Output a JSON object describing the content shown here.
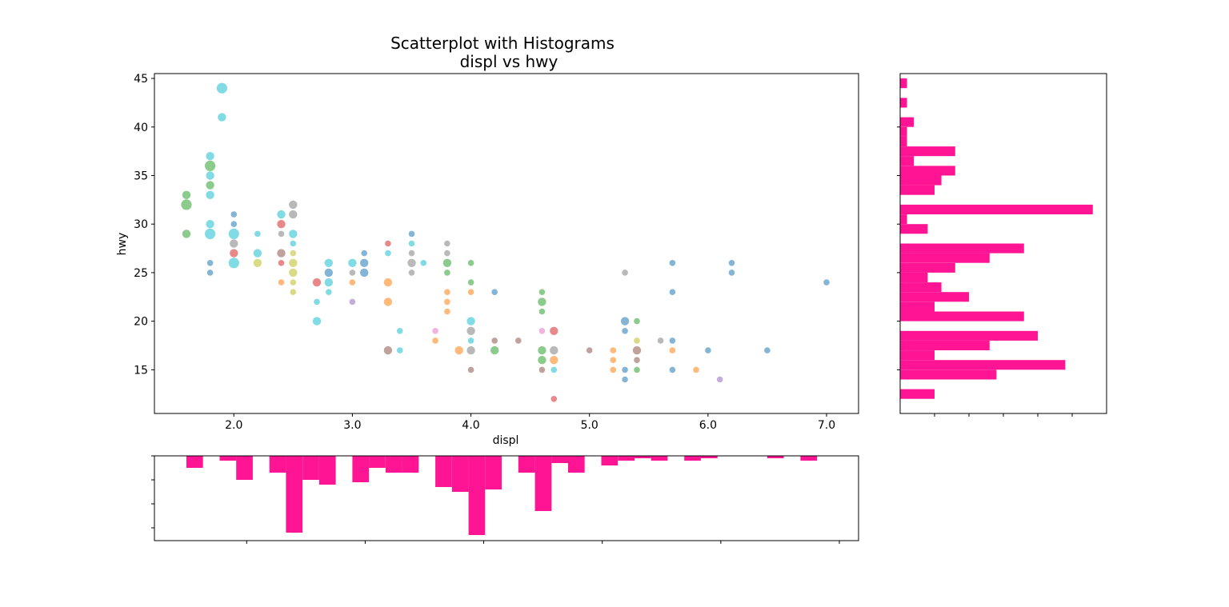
{
  "chart_data": {
    "type": "scatter",
    "title_line1": "Scatterplot with Histograms",
    "title_line2": "displ vs hwy",
    "xlabel": "displ",
    "ylabel": "hwy",
    "xlim": [
      1.33,
      7.27
    ],
    "ylim": [
      10.5,
      45.5
    ],
    "x_ticks": [
      2.0,
      3.0,
      4.0,
      5.0,
      6.0,
      7.0
    ],
    "x_tick_labels": [
      "2.0",
      "3.0",
      "4.0",
      "5.0",
      "6.0",
      "7.0"
    ],
    "y_ticks": [
      15,
      20,
      25,
      30,
      35,
      40,
      45
    ],
    "y_tick_labels": [
      "15",
      "20",
      "25",
      "30",
      "35",
      "40",
      "45"
    ],
    "hist_color": "#ff1493",
    "series_colors": [
      "#1f77b4",
      "#ff7f0e",
      "#2ca02c",
      "#d62728",
      "#9467bd",
      "#8c564b",
      "#e377c2",
      "#7f7f7f",
      "#bcbd22",
      "#17becf"
    ],
    "points": [
      {
        "x": 1.6,
        "y": 33,
        "c": 2,
        "n": 2
      },
      {
        "x": 1.6,
        "y": 32,
        "c": 2,
        "n": 3
      },
      {
        "x": 1.6,
        "y": 29,
        "c": 2,
        "n": 2
      },
      {
        "x": 1.8,
        "y": 37,
        "c": 9,
        "n": 2
      },
      {
        "x": 1.8,
        "y": 36,
        "c": 2,
        "n": 3
      },
      {
        "x": 1.8,
        "y": 35,
        "c": 9,
        "n": 2
      },
      {
        "x": 1.8,
        "y": 34,
        "c": 2,
        "n": 2
      },
      {
        "x": 1.8,
        "y": 33,
        "c": 9,
        "n": 2
      },
      {
        "x": 1.8,
        "y": 30,
        "c": 9,
        "n": 2
      },
      {
        "x": 1.8,
        "y": 29,
        "c": 9,
        "n": 3
      },
      {
        "x": 1.8,
        "y": 26,
        "c": 0,
        "n": 1
      },
      {
        "x": 1.8,
        "y": 25,
        "c": 0,
        "n": 1
      },
      {
        "x": 1.9,
        "y": 44,
        "c": 9,
        "n": 3
      },
      {
        "x": 1.9,
        "y": 41,
        "c": 9,
        "n": 2
      },
      {
        "x": 2.0,
        "y": 31,
        "c": 0,
        "n": 1
      },
      {
        "x": 2.0,
        "y": 30,
        "c": 0,
        "n": 1
      },
      {
        "x": 2.0,
        "y": 29,
        "c": 9,
        "n": 3
      },
      {
        "x": 2.0,
        "y": 28,
        "c": 7,
        "n": 2
      },
      {
        "x": 2.0,
        "y": 27,
        "c": 3,
        "n": 2
      },
      {
        "x": 2.0,
        "y": 26,
        "c": 9,
        "n": 3
      },
      {
        "x": 2.2,
        "y": 29,
        "c": 9,
        "n": 1
      },
      {
        "x": 2.2,
        "y": 27,
        "c": 9,
        "n": 2
      },
      {
        "x": 2.2,
        "y": 26,
        "c": 8,
        "n": 2
      },
      {
        "x": 2.4,
        "y": 31,
        "c": 9,
        "n": 2
      },
      {
        "x": 2.4,
        "y": 30,
        "c": 3,
        "n": 2
      },
      {
        "x": 2.4,
        "y": 29,
        "c": 7,
        "n": 1
      },
      {
        "x": 2.4,
        "y": 27,
        "c": 5,
        "n": 2
      },
      {
        "x": 2.4,
        "y": 26,
        "c": 3,
        "n": 1
      },
      {
        "x": 2.4,
        "y": 24,
        "c": 1,
        "n": 1
      },
      {
        "x": 2.5,
        "y": 32,
        "c": 7,
        "n": 2
      },
      {
        "x": 2.5,
        "y": 31,
        "c": 7,
        "n": 2
      },
      {
        "x": 2.5,
        "y": 29,
        "c": 9,
        "n": 2
      },
      {
        "x": 2.5,
        "y": 28,
        "c": 9,
        "n": 1
      },
      {
        "x": 2.5,
        "y": 27,
        "c": 8,
        "n": 1
      },
      {
        "x": 2.5,
        "y": 26,
        "c": 8,
        "n": 2
      },
      {
        "x": 2.5,
        "y": 25,
        "c": 8,
        "n": 2
      },
      {
        "x": 2.5,
        "y": 24,
        "c": 8,
        "n": 1
      },
      {
        "x": 2.5,
        "y": 23,
        "c": 8,
        "n": 1
      },
      {
        "x": 2.7,
        "y": 24,
        "c": 3,
        "n": 2
      },
      {
        "x": 2.7,
        "y": 22,
        "c": 9,
        "n": 1
      },
      {
        "x": 2.7,
        "y": 20,
        "c": 9,
        "n": 2
      },
      {
        "x": 2.8,
        "y": 26,
        "c": 9,
        "n": 2
      },
      {
        "x": 2.8,
        "y": 25,
        "c": 0,
        "n": 2
      },
      {
        "x": 2.8,
        "y": 24,
        "c": 9,
        "n": 2
      },
      {
        "x": 2.8,
        "y": 23,
        "c": 9,
        "n": 1
      },
      {
        "x": 3.0,
        "y": 26,
        "c": 9,
        "n": 2
      },
      {
        "x": 3.0,
        "y": 25,
        "c": 7,
        "n": 1
      },
      {
        "x": 3.0,
        "y": 24,
        "c": 1,
        "n": 1
      },
      {
        "x": 3.0,
        "y": 22,
        "c": 4,
        "n": 1
      },
      {
        "x": 3.1,
        "y": 27,
        "c": 0,
        "n": 1
      },
      {
        "x": 3.1,
        "y": 26,
        "c": 0,
        "n": 2
      },
      {
        "x": 3.1,
        "y": 25,
        "c": 0,
        "n": 2
      },
      {
        "x": 3.3,
        "y": 28,
        "c": 3,
        "n": 1
      },
      {
        "x": 3.3,
        "y": 27,
        "c": 9,
        "n": 1
      },
      {
        "x": 3.3,
        "y": 24,
        "c": 1,
        "n": 2
      },
      {
        "x": 3.3,
        "y": 22,
        "c": 1,
        "n": 2
      },
      {
        "x": 3.3,
        "y": 17,
        "c": 5,
        "n": 2
      },
      {
        "x": 3.4,
        "y": 19,
        "c": 9,
        "n": 1
      },
      {
        "x": 3.4,
        "y": 17,
        "c": 9,
        "n": 1
      },
      {
        "x": 3.5,
        "y": 29,
        "c": 0,
        "n": 1
      },
      {
        "x": 3.5,
        "y": 28,
        "c": 9,
        "n": 1
      },
      {
        "x": 3.5,
        "y": 27,
        "c": 7,
        "n": 1
      },
      {
        "x": 3.5,
        "y": 26,
        "c": 7,
        "n": 2
      },
      {
        "x": 3.5,
        "y": 25,
        "c": 7,
        "n": 1
      },
      {
        "x": 3.6,
        "y": 26,
        "c": 9,
        "n": 1
      },
      {
        "x": 3.7,
        "y": 19,
        "c": 6,
        "n": 1
      },
      {
        "x": 3.7,
        "y": 18,
        "c": 1,
        "n": 1
      },
      {
        "x": 3.8,
        "y": 28,
        "c": 7,
        "n": 1
      },
      {
        "x": 3.8,
        "y": 27,
        "c": 7,
        "n": 1
      },
      {
        "x": 3.8,
        "y": 26,
        "c": 2,
        "n": 2
      },
      {
        "x": 3.8,
        "y": 25,
        "c": 2,
        "n": 1
      },
      {
        "x": 3.8,
        "y": 23,
        "c": 1,
        "n": 1
      },
      {
        "x": 3.8,
        "y": 22,
        "c": 1,
        "n": 1
      },
      {
        "x": 3.8,
        "y": 21,
        "c": 1,
        "n": 1
      },
      {
        "x": 3.9,
        "y": 17,
        "c": 1,
        "n": 2
      },
      {
        "x": 4.0,
        "y": 26,
        "c": 2,
        "n": 1
      },
      {
        "x": 4.0,
        "y": 24,
        "c": 2,
        "n": 1
      },
      {
        "x": 4.0,
        "y": 23,
        "c": 1,
        "n": 1
      },
      {
        "x": 4.0,
        "y": 20,
        "c": 9,
        "n": 2
      },
      {
        "x": 4.0,
        "y": 19,
        "c": 7,
        "n": 2
      },
      {
        "x": 4.0,
        "y": 18,
        "c": 9,
        "n": 1
      },
      {
        "x": 4.0,
        "y": 17,
        "c": 7,
        "n": 2
      },
      {
        "x": 4.0,
        "y": 15,
        "c": 5,
        "n": 1
      },
      {
        "x": 4.2,
        "y": 23,
        "c": 0,
        "n": 1
      },
      {
        "x": 4.2,
        "y": 18,
        "c": 5,
        "n": 1
      },
      {
        "x": 4.2,
        "y": 17,
        "c": 2,
        "n": 2
      },
      {
        "x": 4.4,
        "y": 18,
        "c": 5,
        "n": 1
      },
      {
        "x": 4.6,
        "y": 23,
        "c": 2,
        "n": 1
      },
      {
        "x": 4.6,
        "y": 22,
        "c": 2,
        "n": 2
      },
      {
        "x": 4.6,
        "y": 21,
        "c": 2,
        "n": 1
      },
      {
        "x": 4.6,
        "y": 19,
        "c": 6,
        "n": 1
      },
      {
        "x": 4.6,
        "y": 17,
        "c": 2,
        "n": 2
      },
      {
        "x": 4.6,
        "y": 16,
        "c": 2,
        "n": 2
      },
      {
        "x": 4.6,
        "y": 15,
        "c": 5,
        "n": 1
      },
      {
        "x": 4.7,
        "y": 19,
        "c": 3,
        "n": 2
      },
      {
        "x": 4.7,
        "y": 17,
        "c": 7,
        "n": 2
      },
      {
        "x": 4.7,
        "y": 16,
        "c": 1,
        "n": 2
      },
      {
        "x": 4.7,
        "y": 15,
        "c": 9,
        "n": 1
      },
      {
        "x": 4.7,
        "y": 12,
        "c": 3,
        "n": 1
      },
      {
        "x": 5.0,
        "y": 17,
        "c": 5,
        "n": 1
      },
      {
        "x": 5.2,
        "y": 17,
        "c": 1,
        "n": 1
      },
      {
        "x": 5.2,
        "y": 16,
        "c": 1,
        "n": 1
      },
      {
        "x": 5.2,
        "y": 15,
        "c": 1,
        "n": 1
      },
      {
        "x": 5.3,
        "y": 25,
        "c": 7,
        "n": 1
      },
      {
        "x": 5.3,
        "y": 20,
        "c": 0,
        "n": 2
      },
      {
        "x": 5.3,
        "y": 19,
        "c": 0,
        "n": 1
      },
      {
        "x": 5.3,
        "y": 15,
        "c": 0,
        "n": 1
      },
      {
        "x": 5.3,
        "y": 14,
        "c": 0,
        "n": 1
      },
      {
        "x": 5.4,
        "y": 20,
        "c": 2,
        "n": 1
      },
      {
        "x": 5.4,
        "y": 18,
        "c": 8,
        "n": 1
      },
      {
        "x": 5.4,
        "y": 17,
        "c": 5,
        "n": 2
      },
      {
        "x": 5.4,
        "y": 16,
        "c": 5,
        "n": 1
      },
      {
        "x": 5.4,
        "y": 15,
        "c": 2,
        "n": 1
      },
      {
        "x": 5.6,
        "y": 18,
        "c": 7,
        "n": 1
      },
      {
        "x": 5.7,
        "y": 26,
        "c": 0,
        "n": 1
      },
      {
        "x": 5.7,
        "y": 23,
        "c": 0,
        "n": 1
      },
      {
        "x": 5.7,
        "y": 18,
        "c": 0,
        "n": 1
      },
      {
        "x": 5.7,
        "y": 17,
        "c": 1,
        "n": 1
      },
      {
        "x": 5.7,
        "y": 15,
        "c": 0,
        "n": 1
      },
      {
        "x": 5.9,
        "y": 15,
        "c": 1,
        "n": 1
      },
      {
        "x": 6.0,
        "y": 17,
        "c": 0,
        "n": 1
      },
      {
        "x": 6.1,
        "y": 14,
        "c": 4,
        "n": 1
      },
      {
        "x": 6.2,
        "y": 26,
        "c": 0,
        "n": 1
      },
      {
        "x": 6.2,
        "y": 25,
        "c": 0,
        "n": 1
      },
      {
        "x": 6.5,
        "y": 17,
        "c": 0,
        "n": 1
      },
      {
        "x": 7.0,
        "y": 24,
        "c": 0,
        "n": 1
      }
    ],
    "hist_x": {
      "bins": [
        1.6,
        1.74,
        1.88,
        2.02,
        2.16,
        2.3,
        2.44,
        2.58,
        2.72,
        2.86,
        3.0,
        3.14,
        3.28,
        3.42,
        3.56,
        3.7,
        3.84,
        3.98,
        4.12,
        4.26,
        4.4,
        4.54,
        4.68,
        4.82,
        4.96,
        5.1,
        5.24,
        5.38,
        5.52,
        5.66,
        5.8,
        5.94,
        6.08,
        6.22,
        6.36,
        6.5,
        6.64,
        6.78,
        6.92,
        7.06
      ],
      "counts": [
        5,
        0,
        2,
        10,
        0,
        7,
        32,
        10,
        12,
        0,
        11,
        5,
        7,
        7,
        0,
        13,
        15,
        33,
        14,
        0,
        7,
        23,
        3,
        7,
        0,
        4,
        2,
        1,
        2,
        0,
        2,
        1,
        0,
        0,
        0,
        1,
        0,
        2,
        0
      ]
    },
    "hist_y": {
      "bins": [
        12,
        13,
        14,
        15,
        16,
        17,
        18,
        19,
        20,
        21,
        22,
        23,
        24,
        25,
        26,
        27,
        28,
        29,
        30,
        31,
        32,
        33,
        34,
        35,
        36,
        37,
        38,
        39,
        40,
        41,
        42,
        43,
        44,
        45
      ],
      "counts": [
        5,
        0,
        14,
        24,
        5,
        13,
        20,
        0,
        18,
        5,
        10,
        6,
        4,
        8,
        13,
        18,
        0,
        4,
        1,
        28,
        0,
        5,
        6,
        8,
        2,
        8,
        1,
        1,
        2,
        0,
        1,
        0,
        1
      ]
    }
  }
}
